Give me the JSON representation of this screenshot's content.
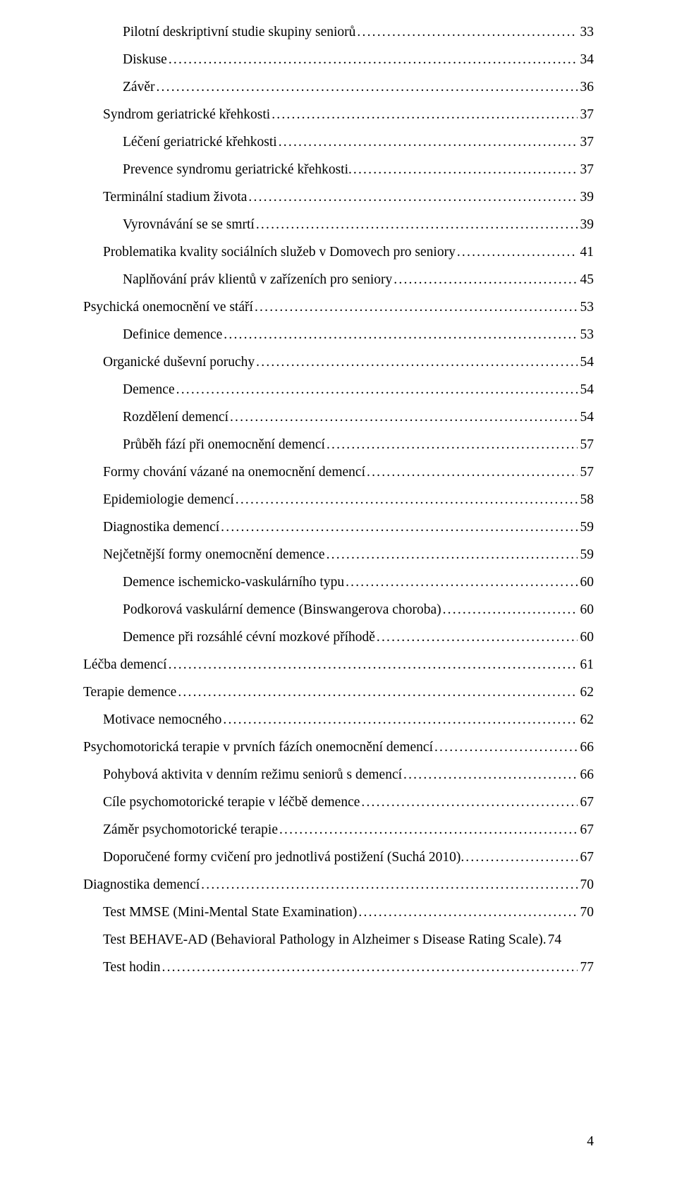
{
  "toc": [
    {
      "level": 2,
      "title": "Pilotní deskriptivní studie skupiny seniorů",
      "page": "33"
    },
    {
      "level": 2,
      "title": "Diskuse",
      "page": "34"
    },
    {
      "level": 2,
      "title": "Závěr",
      "page": "36"
    },
    {
      "level": 1,
      "title": "Syndrom geriatrické křehkosti",
      "page": "37"
    },
    {
      "level": 2,
      "title": "Léčení geriatrické křehkosti",
      "page": "37"
    },
    {
      "level": 2,
      "title": "Prevence syndromu geriatrické křehkosti.",
      "page": "37"
    },
    {
      "level": 1,
      "title": "Terminální stadium života",
      "page": "39"
    },
    {
      "level": 2,
      "title": "Vyrovnávání se se smrtí",
      "page": "39"
    },
    {
      "level": 1,
      "title": "Problematika kvality sociálních služeb v Domovech pro seniory",
      "page": "41"
    },
    {
      "level": 2,
      "title": "Naplňování práv klientů v zařízeních pro seniory",
      "page": "45"
    },
    {
      "level": 0,
      "title": "Psychická onemocnění ve stáří",
      "page": "53"
    },
    {
      "level": 2,
      "title": "Definice demence",
      "page": "53"
    },
    {
      "level": 1,
      "title": "Organické duševní poruchy",
      "page": "54"
    },
    {
      "level": 2,
      "title": "Demence",
      "page": "54"
    },
    {
      "level": 2,
      "title": "Rozdělení demencí",
      "page": "54"
    },
    {
      "level": 2,
      "title": "Průběh fází při onemocnění demencí",
      "page": "57"
    },
    {
      "level": 1,
      "title": "Formy chování vázané na onemocnění demencí",
      "page": "57"
    },
    {
      "level": 1,
      "title": "Epidemiologie demencí",
      "page": "58"
    },
    {
      "level": 1,
      "title": "Diagnostika demencí",
      "page": "59"
    },
    {
      "level": 1,
      "title": "Nejčetnější formy onemocnění demence",
      "page": "59"
    },
    {
      "level": 2,
      "title": "Demence ischemicko-vaskulárního typu",
      "page": "60"
    },
    {
      "level": 2,
      "title": "Podkorová vaskulární demence (Binswangerova choroba)",
      "page": "60"
    },
    {
      "level": 2,
      "title": "Demence při rozsáhlé cévní mozkové příhodě",
      "page": "60"
    },
    {
      "level": 0,
      "title": "Léčba demencí",
      "page": "61"
    },
    {
      "level": 0,
      "title": "Terapie demence",
      "page": "62"
    },
    {
      "level": 1,
      "title": "Motivace nemocného",
      "page": "62"
    },
    {
      "level": 0,
      "title": "Psychomotorická terapie v prvních fázích onemocnění demencí",
      "page": "66"
    },
    {
      "level": 1,
      "title": "Pohybová aktivita v denním režimu seniorů s demencí",
      "page": "66"
    },
    {
      "level": 1,
      "title": "Cíle psychomotorické terapie v léčbě demence",
      "page": "67"
    },
    {
      "level": 1,
      "title": "Záměr psychomotorické terapie",
      "page": "67"
    },
    {
      "level": 1,
      "title": "Doporučené formy cvičení pro jednotlivá postižení (Suchá 2010).",
      "page": "67"
    },
    {
      "level": 0,
      "title": "Diagnostika demencí",
      "page": "70"
    },
    {
      "level": 1,
      "title": "Test MMSE (Mini-Mental State Examination)",
      "page": "70"
    },
    {
      "level": 1,
      "title": "Test BEHAVE-AD (Behavioral Pathology in Alzheimer s Disease Rating Scale)",
      "page": "74",
      "nodots": true,
      "sep": ". "
    },
    {
      "level": 1,
      "title": "Test hodin",
      "page": "77"
    }
  ],
  "footer": {
    "page_number": "4"
  }
}
